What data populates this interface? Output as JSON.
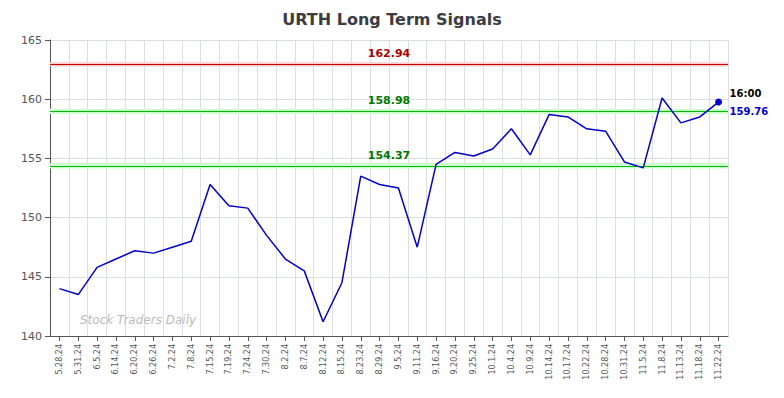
{
  "chart_data": {
    "type": "line",
    "title": "URTH Long Term Signals",
    "color": "#0000cc",
    "grid": true,
    "ylim": [
      140,
      165
    ],
    "yticks": [
      140,
      145,
      150,
      155,
      160,
      165
    ],
    "categories": [
      "5.28.24",
      "5.31.24",
      "6.5.24",
      "6.14.24",
      "6.20.24",
      "6.26.24",
      "7.2.24",
      "7.8.24",
      "7.15.24",
      "7.19.24",
      "7.24.24",
      "7.30.24",
      "8.2.24",
      "8.7.24",
      "8.12.24",
      "8.15.24",
      "8.23.24",
      "8.29.24",
      "9.5.24",
      "9.11.24",
      "9.16.24",
      "9.20.24",
      "9.25.24",
      "10.1.24",
      "10.4.24",
      "10.9.24",
      "10.14.24",
      "10.17.24",
      "10.22.24",
      "10.28.24",
      "10.31.24",
      "11.5.24",
      "11.8.24",
      "11.13.24",
      "11.18.24",
      "11.22.24"
    ],
    "values": [
      144.0,
      143.5,
      145.8,
      146.5,
      147.2,
      147.0,
      147.5,
      148.0,
      152.8,
      151.0,
      150.8,
      148.5,
      146.5,
      145.5,
      141.2,
      144.5,
      153.5,
      152.8,
      152.5,
      147.5,
      154.5,
      155.5,
      155.2,
      155.8,
      157.5,
      155.3,
      158.7,
      158.5,
      157.5,
      157.3,
      154.7,
      154.2,
      160.1,
      158.0,
      158.5,
      159.76
    ],
    "hlines": [
      {
        "value": 162.94,
        "label": "162.94",
        "color": "#cc0000",
        "label_color": "#aa0000",
        "fill_color": "#ffcccc",
        "band": [
          162.76,
          163.12
        ]
      },
      {
        "value": 158.98,
        "label": "158.98",
        "color": "#00bb00",
        "label_color": "#007700",
        "fill_color": "#ccffcc",
        "band": [
          158.76,
          159.2
        ]
      },
      {
        "value": 154.37,
        "label": "154.37",
        "color": "#00bb00",
        "label_color": "#007700",
        "fill_color": "#ccffcc",
        "band": [
          154.15,
          154.59
        ]
      }
    ],
    "annotations": [
      {
        "text": "16:00",
        "color": "#000000"
      },
      {
        "text": "159.76",
        "color": "#0000cc"
      }
    ],
    "watermark": {
      "text": "Stock Traders Daily",
      "color": "#bbbbbb"
    }
  }
}
